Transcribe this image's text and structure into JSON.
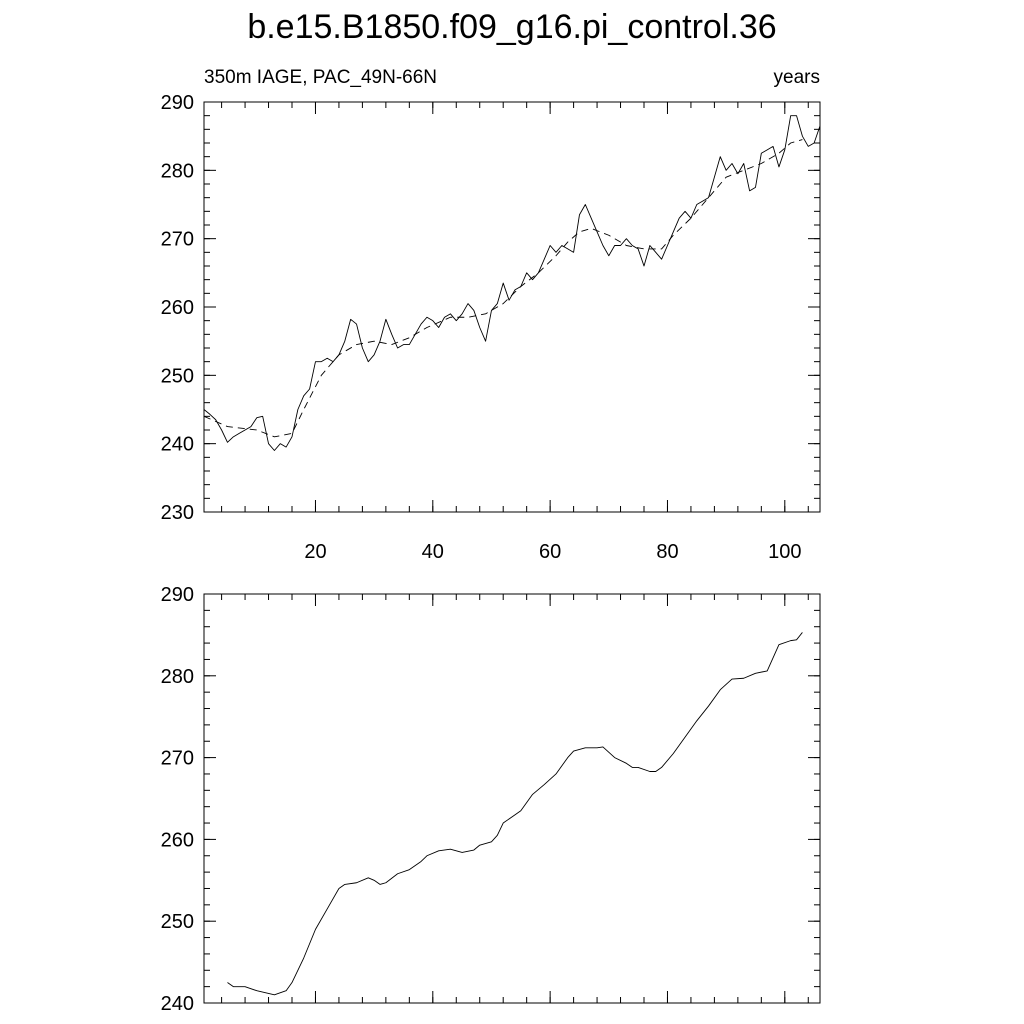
{
  "chart_data": [
    {
      "type": "line",
      "title": "b.e15.B1850.f09_g16.pi_control.36",
      "subtitle_left": "350m IAGE, PAC_49N-66N",
      "subtitle_right": "years",
      "xlim": [
        1,
        106
      ],
      "ylim": [
        230,
        290
      ],
      "xticks": [
        20,
        40,
        60,
        80,
        100
      ],
      "yticks": [
        230,
        240,
        250,
        260,
        270,
        280,
        290
      ],
      "series": [
        {
          "color": "#000000",
          "dashed": false,
          "x": [
            1,
            2,
            3,
            4,
            5,
            6,
            7,
            8,
            9,
            10,
            11,
            12,
            13,
            14,
            15,
            16,
            17,
            18,
            19,
            20,
            21,
            22,
            23,
            24,
            25,
            26,
            27,
            28,
            29,
            30,
            31,
            32,
            33,
            34,
            35,
            36,
            37,
            38,
            39,
            40,
            41,
            42,
            43,
            44,
            45,
            46,
            47,
            48,
            49,
            50,
            51,
            52,
            53,
            54,
            55,
            56,
            57,
            58,
            59,
            60,
            61,
            62,
            63,
            64,
            65,
            66,
            67,
            68,
            69,
            70,
            71,
            72,
            73,
            74,
            75,
            76,
            77,
            78,
            79,
            80,
            81,
            82,
            83,
            84,
            85,
            86,
            87,
            88,
            89,
            90,
            91,
            92,
            93,
            94,
            95,
            96,
            97,
            98,
            99,
            100,
            101,
            102,
            103,
            104,
            105,
            106
          ],
          "values": [
            245,
            244.3,
            243.5,
            242,
            240.2,
            241,
            241.5,
            242,
            242.5,
            243.8,
            244,
            240,
            239,
            240,
            239.5,
            241,
            245,
            247,
            248,
            252,
            252,
            252.5,
            252,
            253,
            255,
            258.2,
            257.5,
            254,
            252,
            253,
            255,
            258.2,
            256,
            254,
            254.5,
            254.5,
            256,
            257.5,
            258.5,
            258,
            257,
            258.5,
            259,
            258,
            259,
            260.5,
            259.5,
            257,
            255,
            259.5,
            260.5,
            263.5,
            261,
            262.5,
            263,
            265,
            264,
            265,
            267,
            269,
            268,
            269,
            268.5,
            268,
            273.5,
            275,
            273,
            271,
            269,
            267.5,
            269,
            269,
            270,
            269,
            268.5,
            266,
            269,
            268,
            267,
            269,
            271,
            273,
            274,
            273,
            275,
            275.5,
            276,
            279,
            282,
            280,
            281,
            279.5,
            281,
            277,
            277.5,
            282.5,
            283,
            283.5,
            280.5,
            283,
            288,
            288,
            285,
            283.5,
            284,
            286.5
          ]
        },
        {
          "color": "#000000",
          "dashed": true,
          "x": [
            1,
            5,
            10,
            13,
            16,
            18,
            21,
            24,
            27,
            30,
            33,
            36,
            39,
            43,
            46,
            49,
            52,
            55,
            58,
            61,
            63,
            65,
            67,
            70,
            73,
            76,
            79,
            81,
            84,
            87,
            90,
            93,
            96,
            99,
            101,
            103
          ],
          "values": [
            244,
            242.5,
            242,
            241,
            241.5,
            245,
            250,
            253,
            254.5,
            255,
            254.5,
            255.5,
            257,
            258.5,
            258.5,
            259,
            260.5,
            263,
            265,
            267.5,
            269.5,
            271,
            271.5,
            270.5,
            269,
            268.5,
            268.5,
            270.5,
            273,
            276,
            279,
            280,
            281,
            282.5,
            284,
            284.5
          ]
        }
      ]
    },
    {
      "type": "line",
      "xlim": [
        1,
        106
      ],
      "ylim": [
        240,
        290
      ],
      "xticks": [
        20,
        40,
        60,
        80,
        100
      ],
      "yticks": [
        240,
        250,
        260,
        270,
        280,
        290
      ],
      "series": [
        {
          "color": "#000000",
          "dashed": false,
          "x": [
            5,
            6,
            8,
            10,
            13,
            15,
            16,
            18,
            20,
            22,
            24,
            25,
            27,
            29,
            30,
            31,
            32,
            34,
            36,
            38,
            39,
            41,
            43,
            45,
            47,
            48,
            50,
            51,
            52,
            54,
            55,
            57,
            59,
            61,
            63,
            64,
            66,
            68,
            69,
            71,
            73,
            74,
            75,
            77,
            78,
            79,
            81,
            83,
            85,
            87,
            89,
            91,
            93,
            95,
            97,
            99,
            101,
            102,
            103
          ],
          "values": [
            242.5,
            242,
            242,
            241.5,
            241,
            241.5,
            242.5,
            245.5,
            249,
            251.5,
            254,
            254.5,
            254.7,
            255.3,
            255,
            254.5,
            254.7,
            255.8,
            256.3,
            257.3,
            258,
            258.6,
            258.8,
            258.4,
            258.7,
            259.3,
            259.7,
            260.5,
            262,
            263,
            263.5,
            265.5,
            266.7,
            268,
            270,
            270.8,
            271.2,
            271.2,
            271.3,
            270,
            269.3,
            268.8,
            268.8,
            268.3,
            268.3,
            268.8,
            270.5,
            272.5,
            274.5,
            276.3,
            278.3,
            279.6,
            279.7,
            280.3,
            280.6,
            283.8,
            284.3,
            284.4,
            285.3
          ]
        }
      ]
    }
  ]
}
